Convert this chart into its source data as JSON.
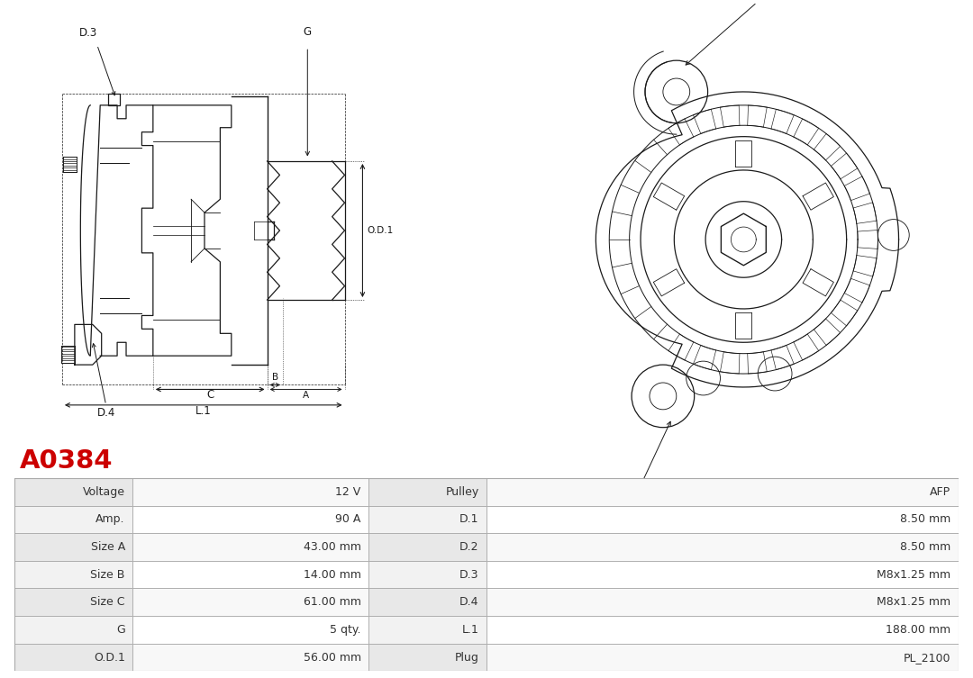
{
  "title": "A0384",
  "title_color": "#cc0000",
  "bg_color": "#ffffff",
  "table_rows": [
    [
      "Voltage",
      "12 V",
      "Pulley",
      "AFP"
    ],
    [
      "Amp.",
      "90 A",
      "D.1",
      "8.50 mm"
    ],
    [
      "Size A",
      "43.00 mm",
      "D.2",
      "8.50 mm"
    ],
    [
      "Size B",
      "14.00 mm",
      "D.3",
      "M8x1.25 mm"
    ],
    [
      "Size C",
      "61.00 mm",
      "D.4",
      "M8x1.25 mm"
    ],
    [
      "G",
      "5 qty.",
      "L.1",
      "188.00 mm"
    ],
    [
      "O.D.1",
      "56.00 mm",
      "Plug",
      "PL_2100"
    ]
  ],
  "lc": "#1a1a1a",
  "lw": 0.9,
  "text_color": "#333333",
  "border_color": "#aaaaaa"
}
